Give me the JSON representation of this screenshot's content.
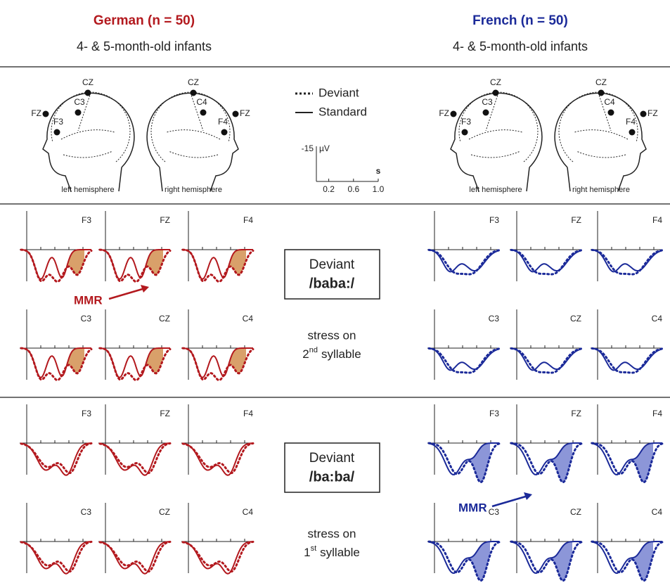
{
  "header": {
    "left": {
      "title": "German (n = 50)",
      "subtitle": "4- & 5-month-old infants"
    },
    "right": {
      "title": "French (n = 50)",
      "subtitle": "4- & 5-month-old infants"
    }
  },
  "heads": {
    "left_hemisphere": {
      "caption": "left hemisphere",
      "electrodes": [
        "CZ",
        "C3",
        "FZ",
        "F3"
      ]
    },
    "right_hemisphere": {
      "caption": "right hemisphere",
      "electrodes": [
        "CZ",
        "C4",
        "FZ",
        "F4"
      ]
    }
  },
  "legend": [
    "Deviant",
    "Standard"
  ],
  "scale": {
    "amplitude": -15,
    "amplitude_unit": "µV",
    "time_unit": "s",
    "time_ticks": [
      0.2,
      0.6,
      {
        "value": 1,
        "label": "1.0"
      }
    ]
  },
  "electrodes": [
    "F3",
    "FZ",
    "F4",
    "C3",
    "CZ",
    "C4"
  ],
  "conditions": [
    {
      "box_label": "Deviant",
      "stimulus": "/baba:/",
      "stress": "stress on",
      "ordinal": "2",
      "suffix": "nd",
      "syllable": "syllable"
    },
    {
      "box_label": "Deviant",
      "stimulus": "/ba:ba/",
      "stress": "stress on",
      "ordinal": "1",
      "suffix": "st",
      "syllable": "syllable"
    }
  ],
  "annotations": {
    "german_mmr": "MMR",
    "french_mmr": "MMR"
  }
}
